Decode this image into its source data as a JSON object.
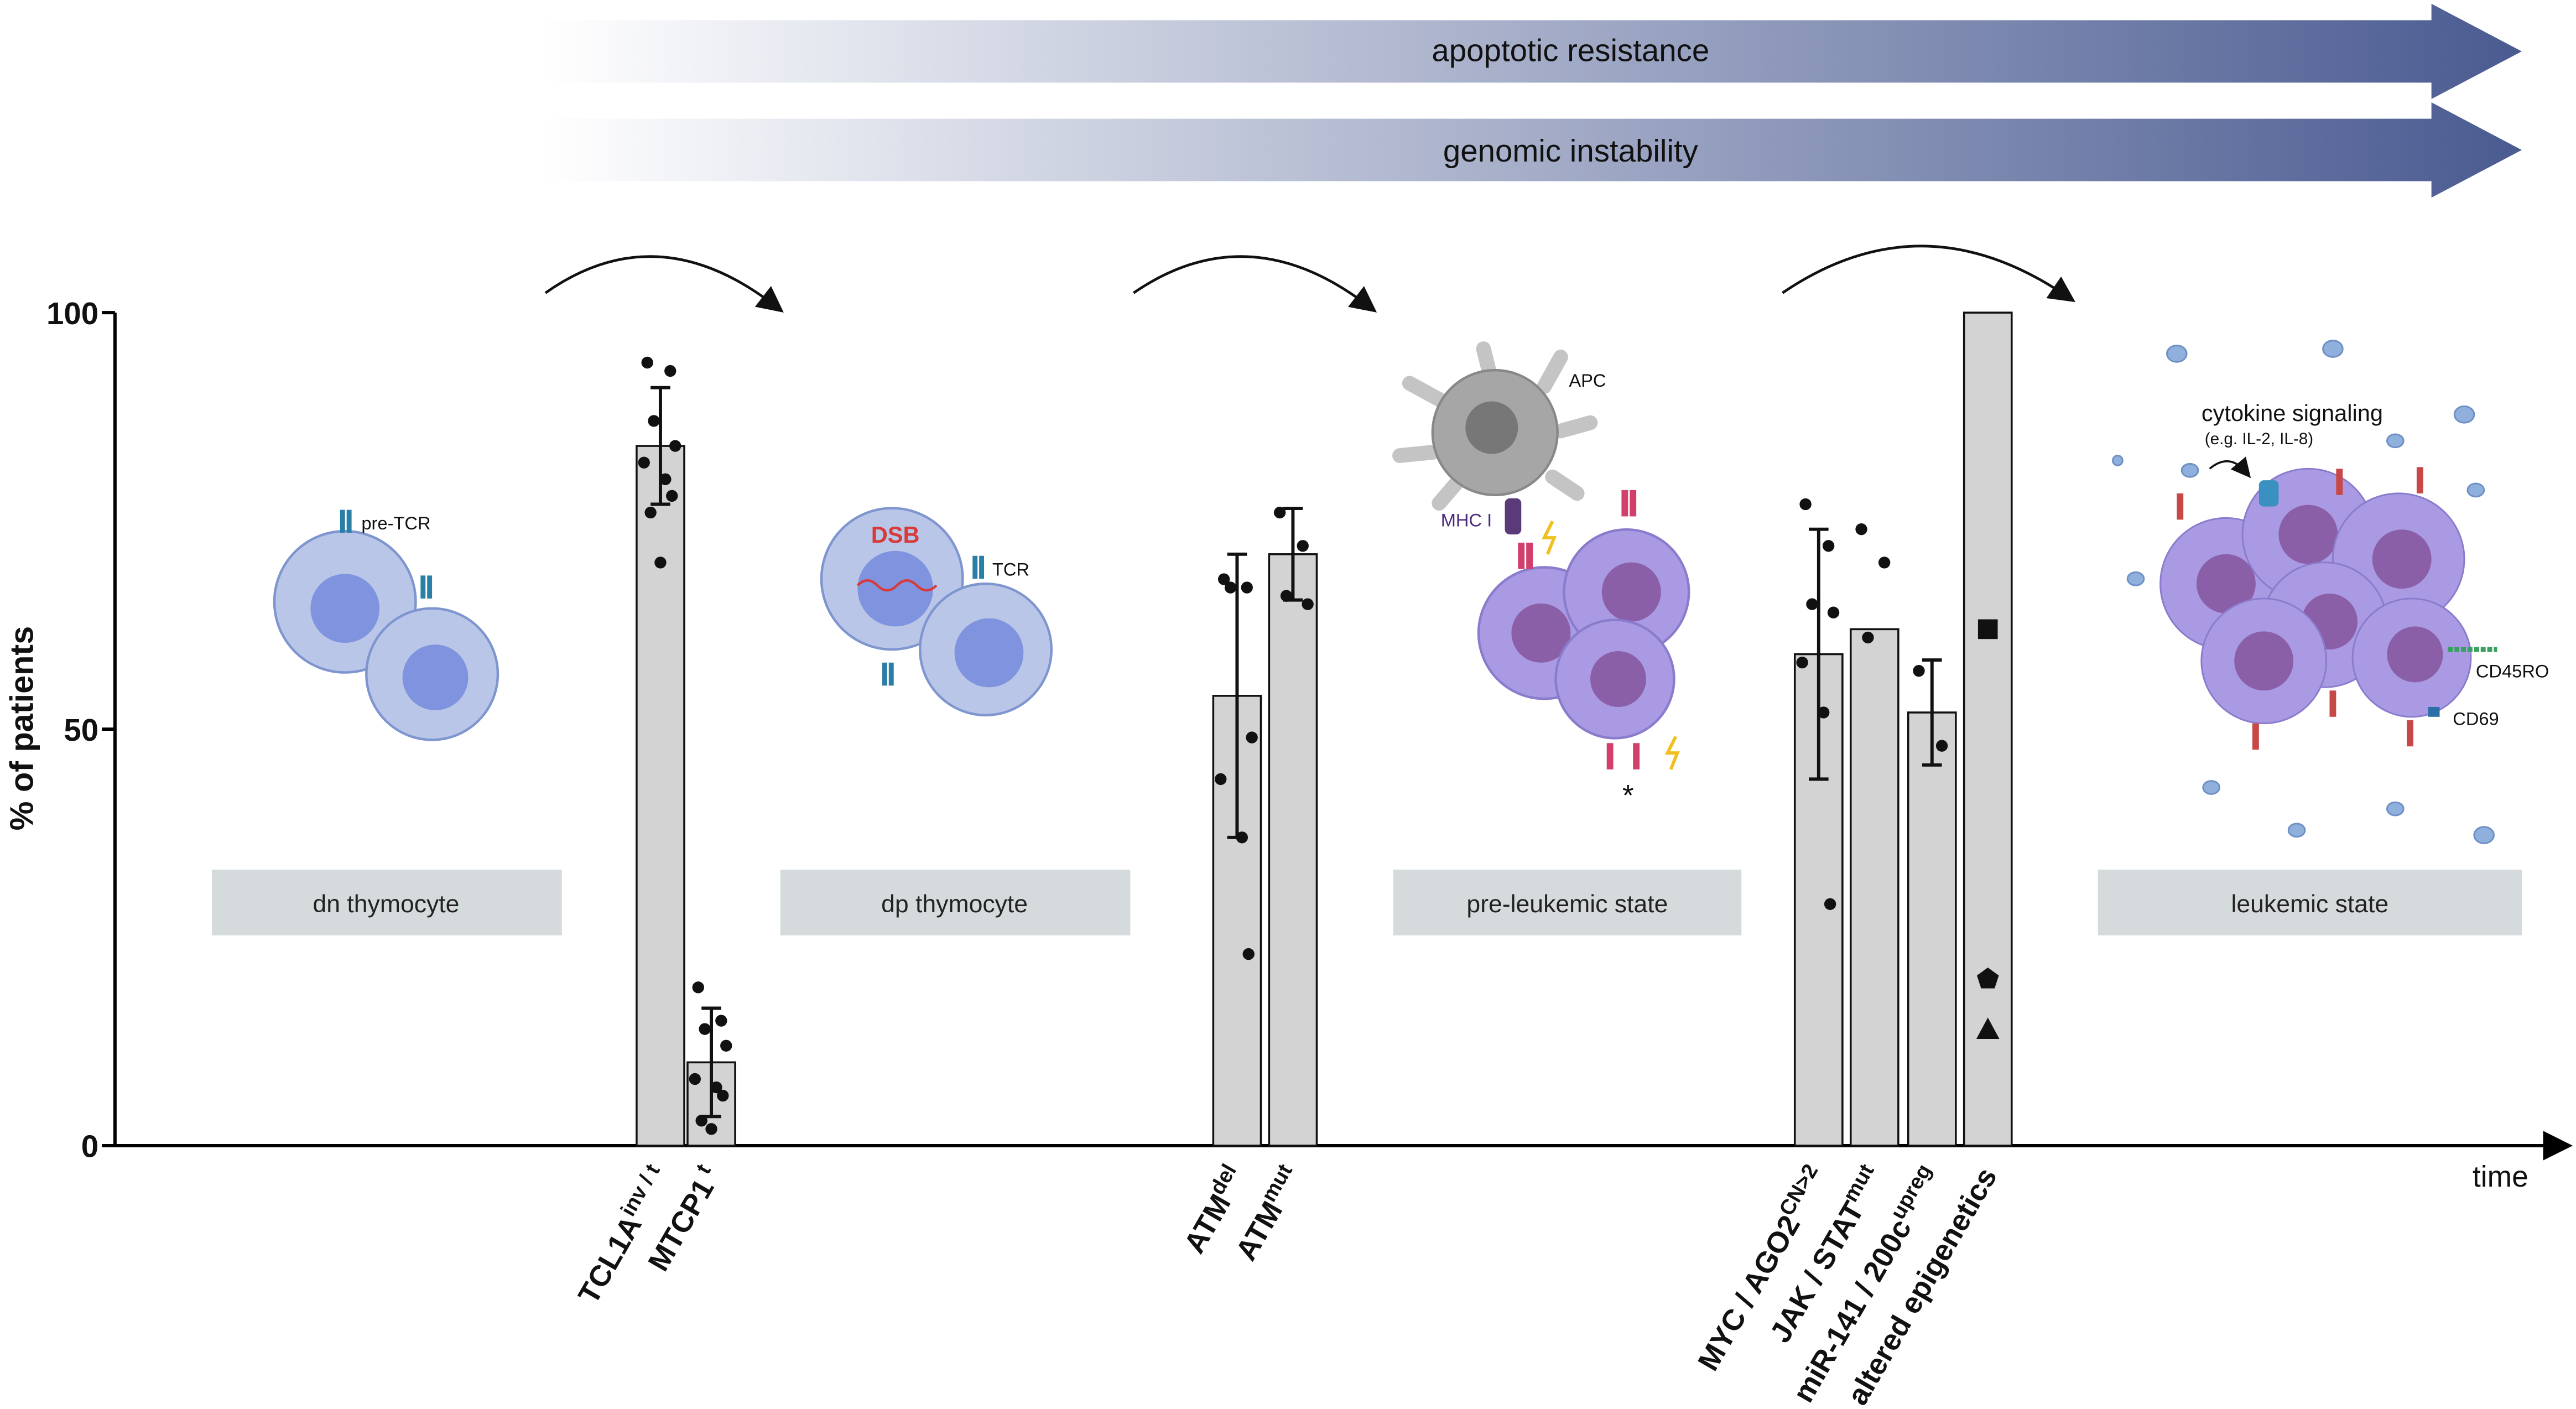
{
  "chart_data": {
    "type": "bar",
    "ylabel": "% of patients",
    "xlabel": "time",
    "ylim": [
      0,
      100
    ],
    "yticks": [
      0,
      50,
      100
    ],
    "color": "#d3d3d3",
    "categories": [
      {
        "base": "TCL1A",
        "sup": "inv / t"
      },
      {
        "base": "MTCP1",
        "sup": " t"
      },
      {
        "base": "ATM",
        "sup": "del"
      },
      {
        "base": "ATM",
        "sup": "mut"
      },
      {
        "base": "MYC / AGO2",
        "sup": "CN>2"
      },
      {
        "base": "JAK / STAT",
        "sup": "mut"
      },
      {
        "base": "miR-141 / 200c",
        "sup": "upreg"
      },
      {
        "base": "altered epigenetics",
        "sup": ""
      }
    ],
    "values": [
      84,
      10,
      54,
      71,
      59,
      62,
      52,
      100
    ],
    "errors": [
      7,
      6.5,
      17,
      5.5,
      15,
      null,
      6.3,
      null
    ],
    "points": [
      [
        94,
        93,
        87,
        84,
        82,
        80,
        78,
        76,
        70
      ],
      [
        19,
        15,
        14,
        12,
        8,
        7,
        6,
        3,
        2
      ],
      [
        68,
        67,
        67,
        49,
        44,
        37,
        23
      ],
      [
        76,
        72,
        66,
        65
      ],
      [
        77,
        72,
        65,
        64,
        58,
        52,
        29
      ],
      [
        74,
        70,
        61
      ],
      [
        57,
        48
      ],
      [
        62,
        20,
        14
      ]
    ],
    "point_markers": [
      "circle",
      "circle",
      "circle",
      "circle",
      "circle",
      "circle",
      "circle",
      [
        "square",
        "pentagon",
        "triangle"
      ]
    ],
    "trends": [
      "apoptotic resistance",
      "genomic instability"
    ],
    "stages": [
      "dn thymocyte",
      "dp thymocyte",
      "pre-leukemic state",
      "leukemic state"
    ],
    "annotations": [
      "pre-TCR",
      "DSB",
      "TCR",
      "APC",
      "MHC I",
      "*",
      "cytokine signaling",
      "(e.g. IL-2, IL-8)",
      "CD45RO",
      "CD69"
    ]
  }
}
